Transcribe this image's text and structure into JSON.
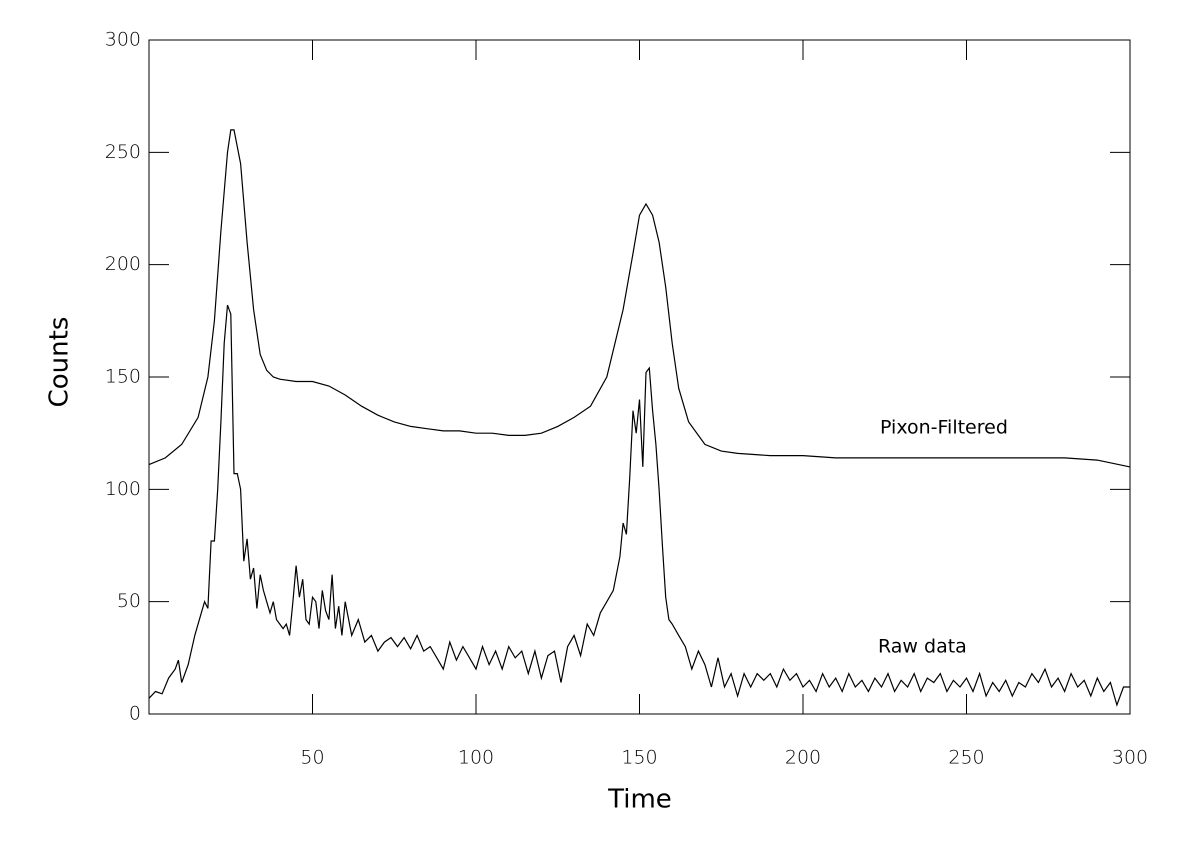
{
  "chart_data": {
    "type": "line",
    "xlabel": "Time",
    "ylabel": "Counts",
    "xlim": [
      0,
      300
    ],
    "ylim": [
      0,
      300
    ],
    "xticks": [
      50,
      100,
      150,
      200,
      250,
      300
    ],
    "yticks": [
      0,
      50,
      100,
      150,
      200,
      250,
      300
    ],
    "series": [
      {
        "name": "Pixon-Filtered",
        "color": "#000000",
        "x": [
          0,
          5,
          10,
          15,
          18,
          20,
          22,
          24,
          25,
          26,
          28,
          30,
          32,
          34,
          36,
          38,
          40,
          45,
          50,
          55,
          60,
          65,
          70,
          75,
          80,
          85,
          90,
          95,
          100,
          105,
          110,
          115,
          120,
          125,
          130,
          135,
          140,
          145,
          148,
          150,
          152,
          154,
          156,
          158,
          160,
          162,
          165,
          170,
          175,
          180,
          190,
          200,
          210,
          220,
          230,
          240,
          250,
          260,
          270,
          280,
          290,
          300
        ],
        "values": [
          111,
          114,
          120,
          132,
          150,
          175,
          215,
          250,
          260,
          260,
          245,
          210,
          180,
          160,
          153,
          150,
          149,
          148,
          148,
          146,
          142,
          137,
          133,
          130,
          128,
          127,
          126,
          126,
          125,
          125,
          124,
          124,
          125,
          128,
          132,
          137,
          150,
          180,
          205,
          222,
          227,
          222,
          210,
          190,
          165,
          145,
          130,
          120,
          117,
          116,
          115,
          115,
          114,
          114,
          114,
          114,
          114,
          114,
          114,
          114,
          113,
          110
        ]
      },
      {
        "name": "Raw data",
        "color": "#000000",
        "x": [
          0,
          2,
          4,
          6,
          8,
          9,
          10,
          12,
          14,
          16,
          17,
          18,
          19,
          20,
          21,
          22,
          23,
          24,
          25,
          26,
          27,
          28,
          29,
          30,
          31,
          32,
          33,
          34,
          35,
          36,
          37,
          38,
          39,
          40,
          41,
          42,
          43,
          44,
          45,
          46,
          47,
          48,
          49,
          50,
          51,
          52,
          53,
          54,
          55,
          56,
          57,
          58,
          59,
          60,
          62,
          64,
          66,
          68,
          70,
          72,
          74,
          76,
          78,
          80,
          82,
          84,
          86,
          88,
          90,
          92,
          94,
          96,
          98,
          100,
          102,
          104,
          106,
          108,
          110,
          112,
          114,
          116,
          118,
          120,
          122,
          124,
          126,
          128,
          130,
          132,
          134,
          136,
          138,
          140,
          142,
          144,
          145,
          146,
          147,
          148,
          149,
          150,
          151,
          152,
          153,
          154,
          155,
          156,
          157,
          158,
          159,
          160,
          162,
          164,
          166,
          168,
          170,
          172,
          174,
          176,
          178,
          180,
          182,
          184,
          186,
          188,
          190,
          192,
          194,
          196,
          198,
          200,
          202,
          204,
          206,
          208,
          210,
          212,
          214,
          216,
          218,
          220,
          222,
          224,
          226,
          228,
          230,
          232,
          234,
          236,
          238,
          240,
          242,
          244,
          246,
          248,
          250,
          252,
          254,
          256,
          258,
          260,
          262,
          264,
          266,
          268,
          270,
          272,
          274,
          276,
          278,
          280,
          282,
          284,
          286,
          288,
          290,
          292,
          294,
          296,
          298,
          300
        ],
        "values": [
          7,
          10,
          9,
          16,
          20,
          24,
          14,
          22,
          35,
          45,
          50,
          47,
          77,
          77,
          100,
          130,
          165,
          182,
          178,
          107,
          107,
          100,
          68,
          78,
          60,
          65,
          47,
          62,
          55,
          50,
          45,
          50,
          42,
          40,
          38,
          40,
          35,
          50,
          66,
          52,
          60,
          42,
          40,
          52,
          50,
          38,
          55,
          46,
          42,
          62,
          38,
          48,
          35,
          50,
          35,
          42,
          32,
          35,
          28,
          32,
          34,
          30,
          34,
          29,
          35,
          28,
          30,
          25,
          20,
          32,
          24,
          30,
          25,
          20,
          30,
          22,
          28,
          20,
          30,
          25,
          28,
          18,
          28,
          16,
          26,
          28,
          14,
          30,
          35,
          26,
          40,
          35,
          45,
          50,
          55,
          70,
          85,
          80,
          105,
          135,
          125,
          140,
          110,
          152,
          154,
          135,
          120,
          100,
          75,
          52,
          42,
          40,
          35,
          30,
          20,
          28,
          22,
          12,
          25,
          12,
          18,
          8,
          18,
          12,
          18,
          15,
          18,
          12,
          20,
          15,
          18,
          12,
          15,
          10,
          18,
          12,
          16,
          10,
          18,
          12,
          15,
          10,
          16,
          12,
          18,
          10,
          15,
          12,
          18,
          10,
          16,
          14,
          18,
          10,
          15,
          12,
          16,
          10,
          18,
          8,
          14,
          10,
          15,
          8,
          14,
          12,
          18,
          14,
          20,
          12,
          16,
          10,
          18,
          12,
          15,
          8,
          16,
          10,
          14,
          4,
          12,
          12
        ]
      }
    ]
  }
}
